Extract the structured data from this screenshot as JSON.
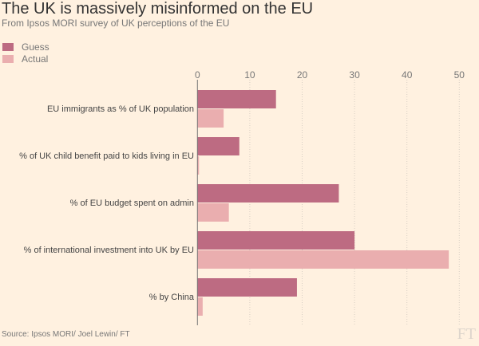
{
  "chart_data": {
    "type": "bar",
    "orientation": "horizontal",
    "title": "The UK is massively misinformed on the EU",
    "subtitle": "From Ipsos MORI survey of UK perceptions of the EU",
    "categories": [
      "EU immigrants as % of UK population",
      "% of UK child benefit paid to kids living in EU",
      "% of EU budget spent on admin",
      "% of international investment into UK by EU",
      "% by China"
    ],
    "series": [
      {
        "name": "Guess",
        "color": "#bd6b82",
        "values": [
          15,
          8,
          27,
          30,
          19
        ]
      },
      {
        "name": "Actual",
        "color": "#eaaeaf",
        "values": [
          5,
          0.3,
          6,
          48,
          1
        ]
      }
    ],
    "xlim": [
      0,
      50
    ],
    "xticks": [
      "0",
      "10",
      "20",
      "30",
      "40",
      "50"
    ],
    "grid": true,
    "legend": "top-left",
    "source": "Source: Ipsos MORI/ Joel Lewin/ FT"
  },
  "logo": "FT"
}
